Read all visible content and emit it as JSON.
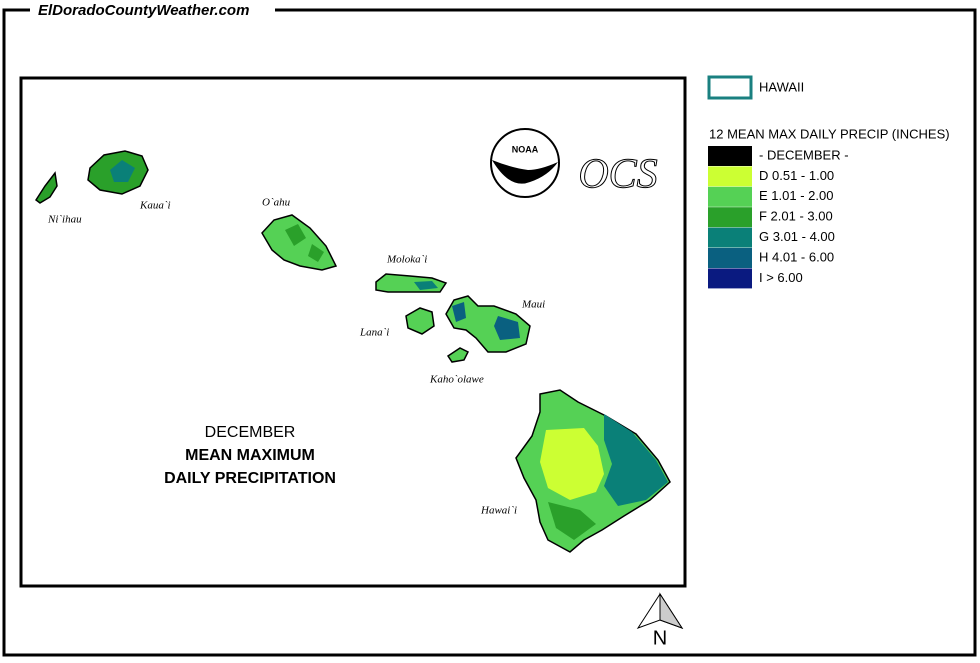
{
  "site": "ElDoradoCountyWeather.com",
  "map": {
    "title": "DECEMBER",
    "subtitle": [
      "MEAN MAXIMUM",
      "DAILY PRECIPITATION"
    ],
    "islands": [
      "Ni`ihau",
      "Kaua`i",
      "O`ahu",
      "Moloka`i",
      "Lana`i",
      "Maui",
      "Kaho`olawe",
      "Hawai`i"
    ],
    "logos": [
      "NOAA",
      "OCS"
    ],
    "north": "N"
  },
  "legend": {
    "outline": "HAWAII",
    "title": "12 MEAN MAX DAILY PRECIP (INCHES)",
    "classes": [
      {
        "label": "- DECEMBER -",
        "color": "#000000"
      },
      {
        "label": "D 0.51 - 1.00",
        "color": "#ccff33"
      },
      {
        "label": "E 1.01 - 2.00",
        "color": "#55d155"
      },
      {
        "label": "F 2.01 - 3.00",
        "color": "#2aa02a"
      },
      {
        "label": "G 3.01 - 4.00",
        "color": "#0a8078"
      },
      {
        "label": "H 4.01 - 6.00",
        "color": "#0a6080"
      },
      {
        "label": "I > 6.00",
        "color": "#0a1a80"
      }
    ]
  }
}
